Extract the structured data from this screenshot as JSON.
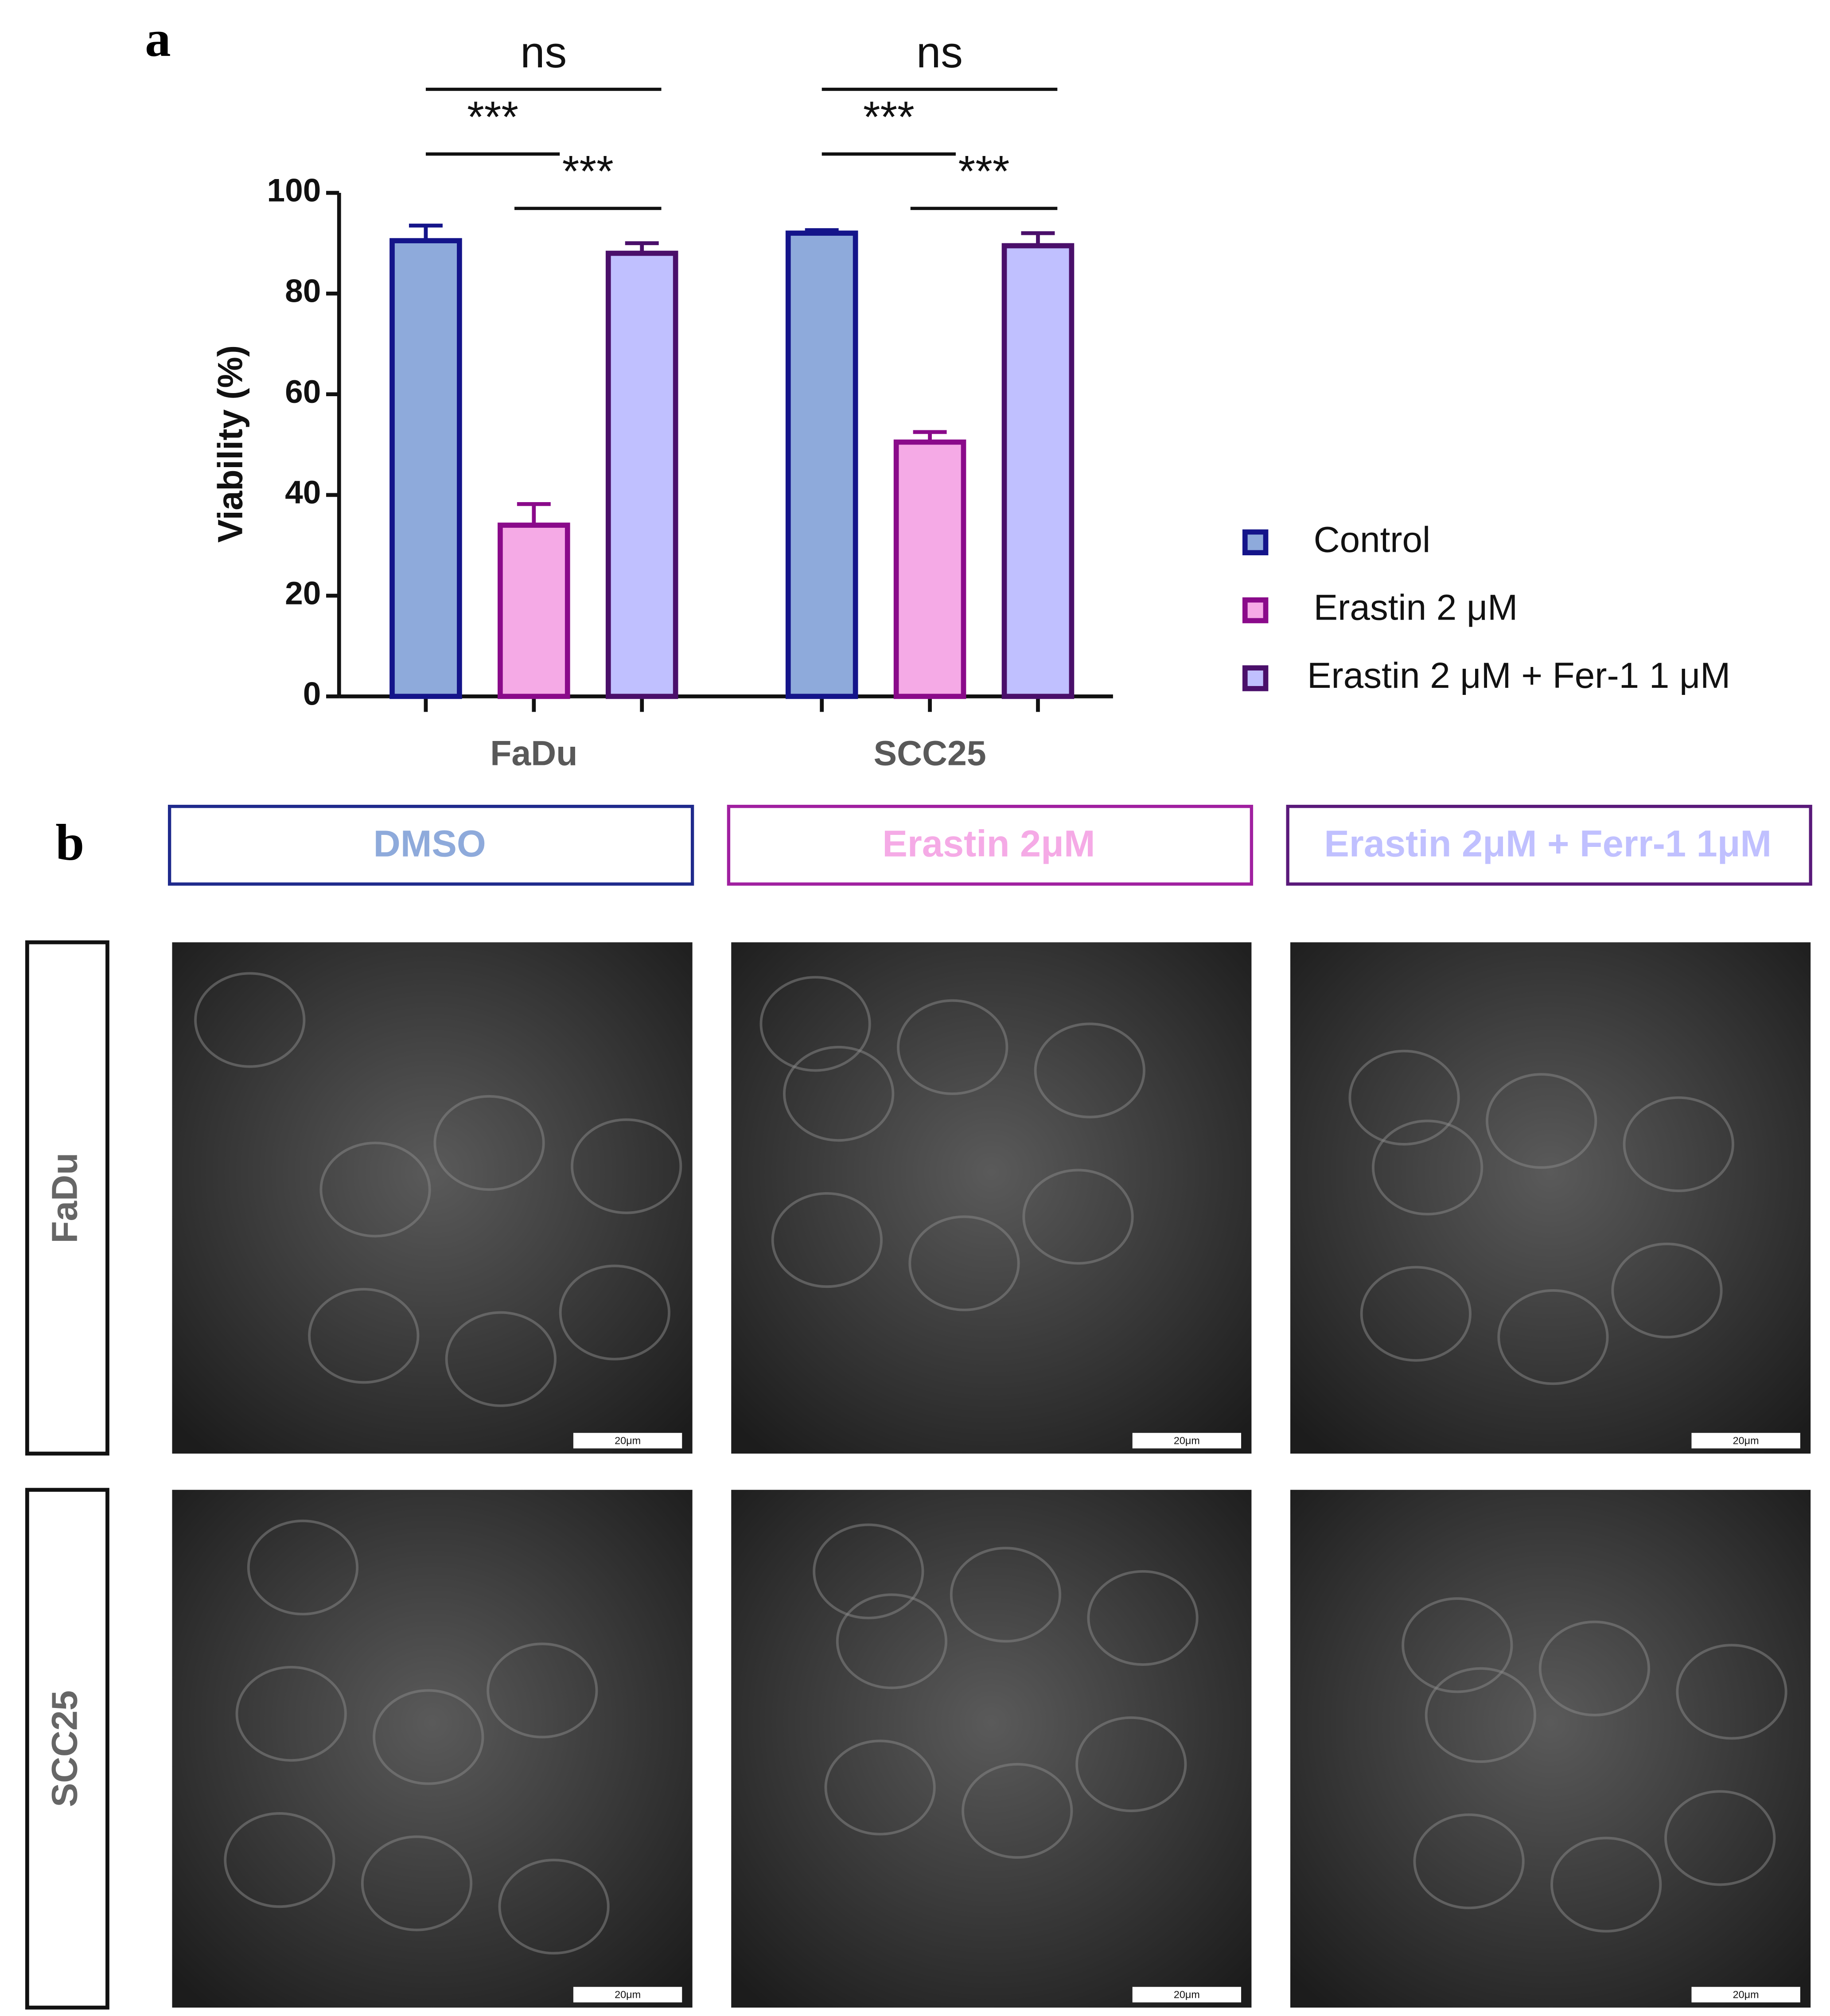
{
  "panel_labels": [
    "a",
    "b"
  ],
  "chart_data": {
    "type": "bar",
    "y_label": "Viability (%)",
    "categories": [
      "FaDu",
      "SCC25"
    ],
    "series": [
      {
        "name": "Control",
        "color": "#8eaadb",
        "edge_color": "#14148a",
        "values": [
          90.5,
          92
        ],
        "errors": [
          3,
          0.6
        ]
      },
      {
        "name": "Erastin 2 μM",
        "color": "#f5aae6",
        "edge_color": "#8a0a8a",
        "values": [
          34,
          50.5
        ],
        "errors": [
          4.2,
          2
        ]
      },
      {
        "name": "Erastin 2 μM + Fer-1 1 μM",
        "color": "#c0c0ff",
        "edge_color": "#4a0f6a",
        "values": [
          88,
          89.5
        ],
        "errors": [
          2,
          2.5
        ]
      }
    ],
    "ylim": [
      0,
      100
    ],
    "yticks": [
      0,
      20,
      40,
      60,
      80,
      100
    ],
    "significance": [
      {
        "label": "ns",
        "category": 0,
        "series": [
          0,
          2
        ]
      },
      {
        "label": "***",
        "category": 0,
        "series": [
          0,
          1
        ]
      },
      {
        "label": "***",
        "category": 0,
        "series": [
          1,
          2
        ]
      },
      {
        "label": "ns",
        "category": 1,
        "series": [
          0,
          2
        ]
      },
      {
        "label": "***",
        "category": 1,
        "series": [
          0,
          1
        ]
      },
      {
        "label": "***",
        "category": 1,
        "series": [
          1,
          2
        ]
      }
    ],
    "legend": "right"
  },
  "microscopy": {
    "columns": [
      {
        "label": "DMSO",
        "color": "#8eaadb",
        "border": "#1f2a8c"
      },
      {
        "label": "Erastin 2μM",
        "color": "#f5aae6",
        "border": "#a020a0"
      },
      {
        "label": "Erastin 2μM + Ferr-1 1μM",
        "color": "#c0c0ff",
        "border": "#5a1a7a"
      }
    ],
    "rows": [
      "FaDu",
      "SCC25"
    ],
    "scale_bar": "20μm"
  }
}
